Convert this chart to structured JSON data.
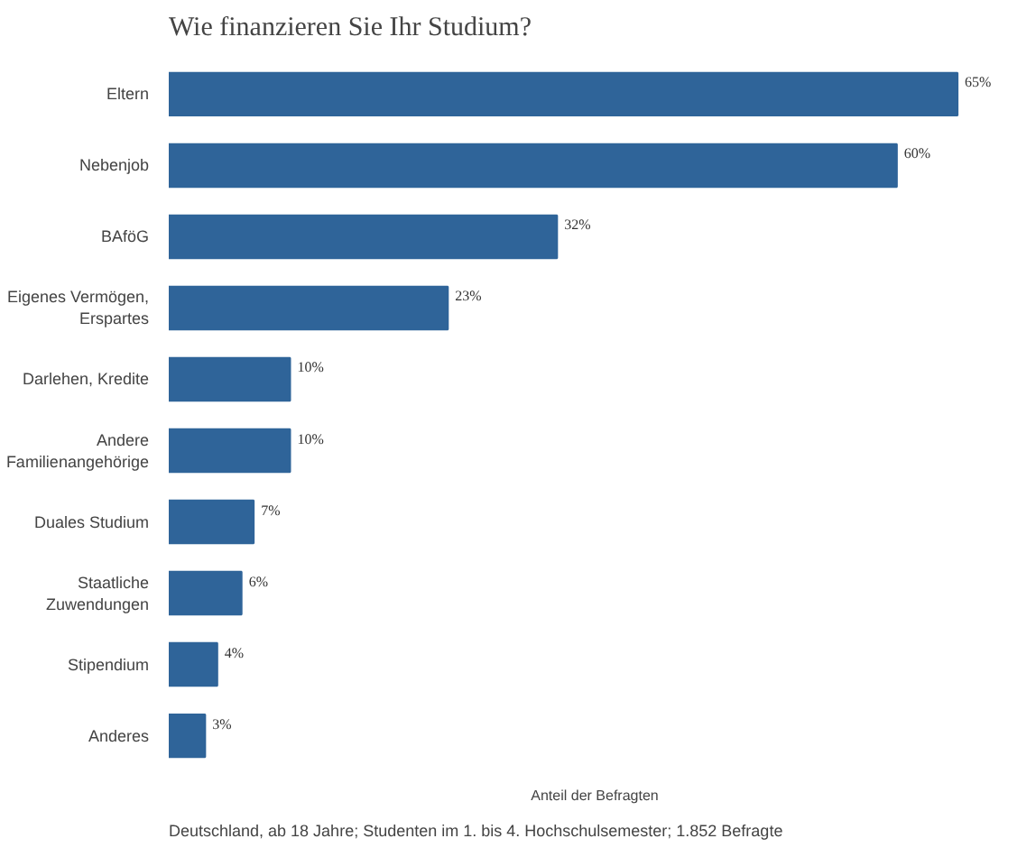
{
  "chart_data": {
    "type": "bar",
    "orientation": "horizontal",
    "title": "Wie finanzieren Sie Ihr Studium?",
    "xlabel": "Anteil der Befragten",
    "categories": [
      "Eltern",
      "Nebenjob",
      "BAföG",
      "Eigenes Vermögen,\nErspartes",
      "Darlehen, Kredite",
      "Andere\nFamilienangehörige",
      "Duales Studium",
      "Staatliche\nZuwendungen",
      "Stipendium",
      "Anderes"
    ],
    "values": [
      65,
      60,
      32,
      23,
      10,
      10,
      7,
      6,
      4,
      3
    ],
    "value_labels": [
      "65%",
      "60%",
      "32%",
      "23%",
      "10%",
      "10%",
      "7%",
      "6%",
      "4%",
      "3%"
    ],
    "color": "#2f6499",
    "grid": false,
    "annotations": [
      "Deutschland, ab 18 Jahre; Studenten im 1. bis 4. Hochschulsemester; 1.852 Befragte"
    ]
  }
}
